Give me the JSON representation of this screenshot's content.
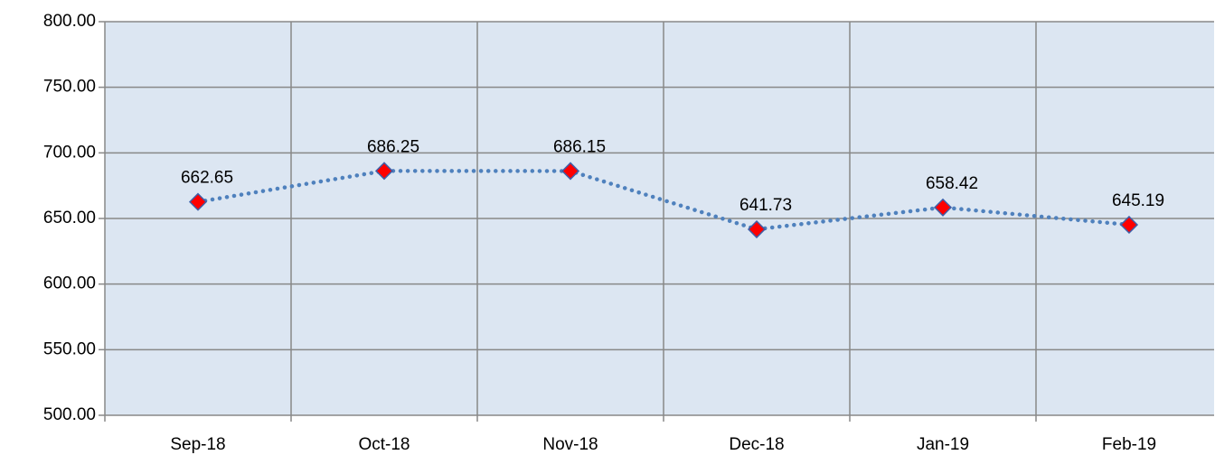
{
  "chart_data": {
    "type": "line",
    "categories": [
      "Sep-18",
      "Oct-18",
      "Nov-18",
      "Dec-18",
      "Jan-19",
      "Feb-19"
    ],
    "values": [
      662.65,
      686.25,
      686.15,
      641.73,
      658.42,
      645.19
    ],
    "color": "#4f81bd",
    "marker_color": "#ff0000",
    "ylim": [
      500,
      800
    ],
    "yticks": [
      {
        "value": 500,
        "label": "500.00"
      },
      {
        "value": 550,
        "label": "550.00"
      },
      {
        "value": 600,
        "label": "600.00"
      },
      {
        "value": 650,
        "label": "650.00"
      },
      {
        "value": 700,
        "label": "700.00"
      },
      {
        "value": 750,
        "label": "750.00"
      },
      {
        "value": 800,
        "label": "800.00"
      }
    ],
    "grid": true
  }
}
